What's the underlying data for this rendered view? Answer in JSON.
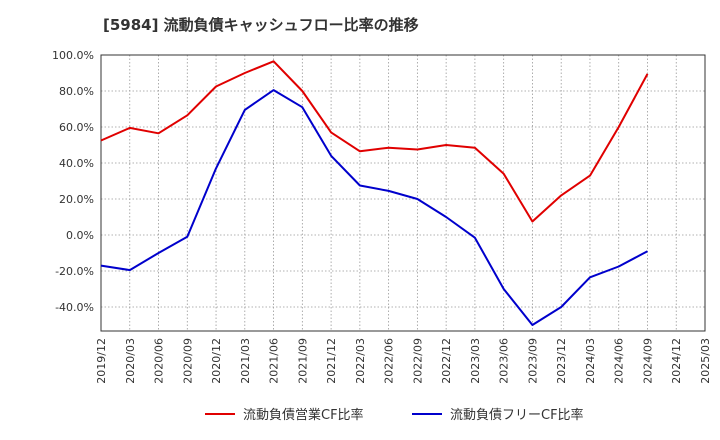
{
  "chart_data": {
    "type": "line",
    "title": "[5984]  流動負債キャッシュフロー比率の推移",
    "x": [
      "2019/12",
      "2020/03",
      "2020/06",
      "2020/09",
      "2020/12",
      "2021/03",
      "2021/06",
      "2021/09",
      "2021/12",
      "2022/03",
      "2022/06",
      "2022/09",
      "2022/12",
      "2023/03",
      "2023/06",
      "2023/09",
      "2023/12",
      "2024/03",
      "2024/06",
      "2024/09",
      "2024/12",
      "2025/03"
    ],
    "y_ticks": [
      "100.0%",
      "80.0%",
      "60.0%",
      "40.0%",
      "20.0%",
      "0.0%",
      "-20.0%",
      "-40.0%"
    ],
    "ylim": [
      -53,
      100
    ],
    "grid": true,
    "legend_position": "bottom",
    "series": [
      {
        "name": "流動負債営業CF比率",
        "color": "#e00000",
        "values": [
          52.5,
          59.5,
          56.5,
          66.5,
          82.5,
          90.0,
          96.5,
          80.0,
          57.0,
          46.5,
          48.5,
          47.5,
          50.0,
          48.5,
          34.0,
          7.5,
          22.0,
          33.0,
          60.0,
          89.5,
          null,
          null
        ]
      },
      {
        "name": "流動負債フリーCF比率",
        "color": "#0000cc",
        "values": [
          -17.0,
          -19.5,
          -10.0,
          -1.0,
          37.0,
          69.5,
          80.5,
          71.0,
          44.0,
          27.5,
          24.5,
          20.0,
          10.0,
          -1.5,
          -30.0,
          -50.0,
          -40.0,
          -23.5,
          -17.5,
          -9.0,
          null,
          null
        ]
      }
    ]
  }
}
